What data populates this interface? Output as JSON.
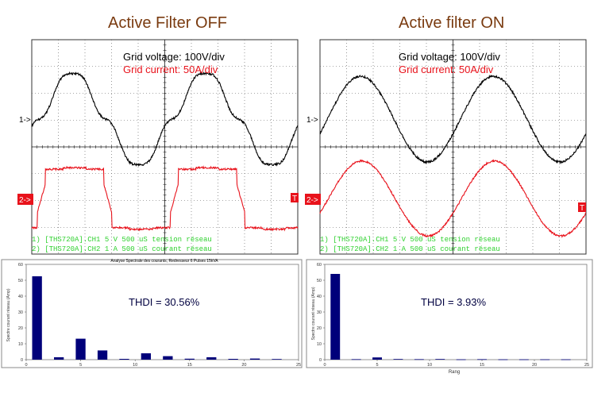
{
  "panels": [
    {
      "title": "Active Filter OFF",
      "legend_voltage": "Grid voltage: 100V/div",
      "legend_current": "Grid current:  50A/div",
      "ch1_marker": "1->",
      "ch2_marker": "2->",
      "trigger_marker": "T",
      "status_line1": "1) [THS720A].CH1  5  V    500 uS tension réseau",
      "status_line2": "2) [THS720A].CH2  1  A    500 uS courant réseau",
      "spectrum_title": "Analyse Spectrale des courants, Redresseur 6 Pulses 15kVA",
      "spectrum_ylabel": "Spectre courant réseau (Amp)",
      "spectrum_xlabel": "",
      "thd_label": "THDI = 30.56%"
    },
    {
      "title": "Active filter ON",
      "legend_voltage": "Grid voltage: 100V/div",
      "legend_current": "Grid current:  50A/div",
      "ch1_marker": "1->",
      "ch2_marker": "2->",
      "trigger_marker": "T",
      "status_line1": "1) [THS720A].CH1  5  V    500 uS tension réseau",
      "status_line2": "2) [THS720A].CH2  1  A    500 uS courant réseau",
      "spectrum_title": "",
      "spectrum_ylabel": "Spectre courant réseau (Amp)",
      "spectrum_xlabel": "Rang",
      "thd_label": "THDI = 3.93%"
    }
  ],
  "colors": {
    "title": "#7a3b10",
    "voltage_trace": "#000000",
    "current_trace": "#e8121b",
    "status_text": "#2fd12f",
    "bar": "#00007a",
    "grid": "#333333"
  },
  "chart_data": [
    {
      "type": "bar",
      "title": "Analyse Spectrale des courants, Redresseur 6 Pulses 15kVA",
      "xlabel": "",
      "ylabel": "Spectre courant réseau (Amp)",
      "xlim": [
        0,
        25
      ],
      "ylim": [
        0,
        60
      ],
      "xticks": [
        0,
        5,
        10,
        15,
        20,
        25
      ],
      "yticks": [
        0,
        10,
        20,
        30,
        40,
        50,
        60
      ],
      "x": [
        1,
        3,
        5,
        7,
        9,
        11,
        13,
        15,
        17,
        19,
        21,
        23
      ],
      "values": [
        52.5,
        1.5,
        13.2,
        5.8,
        0.5,
        4.0,
        2.2,
        0.6,
        1.5,
        0.5,
        0.7,
        0.4
      ],
      "annotation": "THDI = 30.56%"
    },
    {
      "type": "bar",
      "title": "",
      "xlabel": "Rang",
      "ylabel": "Spectre courant réseau (Amp)",
      "xlim": [
        0,
        25
      ],
      "ylim": [
        0,
        60
      ],
      "xticks": [
        0,
        5,
        10,
        15,
        20,
        25
      ],
      "yticks": [
        0,
        10,
        20,
        30,
        40,
        50,
        60
      ],
      "x": [
        1,
        3,
        5,
        7,
        9,
        11,
        13,
        15,
        17,
        19,
        21,
        23
      ],
      "values": [
        54.0,
        0.3,
        1.4,
        0.4,
        0.3,
        0.4,
        0.2,
        0.3,
        0.2,
        0.2,
        0.2,
        0.2
      ],
      "annotation": "THDI = 3.93%"
    }
  ],
  "waveforms": [
    {
      "voltage_shape": "distorted-flat-top-sine",
      "voltage_peak_div": 1.55,
      "current_shape": "quasi-square-6-pulse",
      "current_peak_div": 1.15,
      "cycles": 2
    },
    {
      "voltage_shape": "sine",
      "voltage_peak_div": 1.6,
      "current_shape": "sine",
      "current_peak_div": 1.4,
      "cycles": 2
    }
  ]
}
